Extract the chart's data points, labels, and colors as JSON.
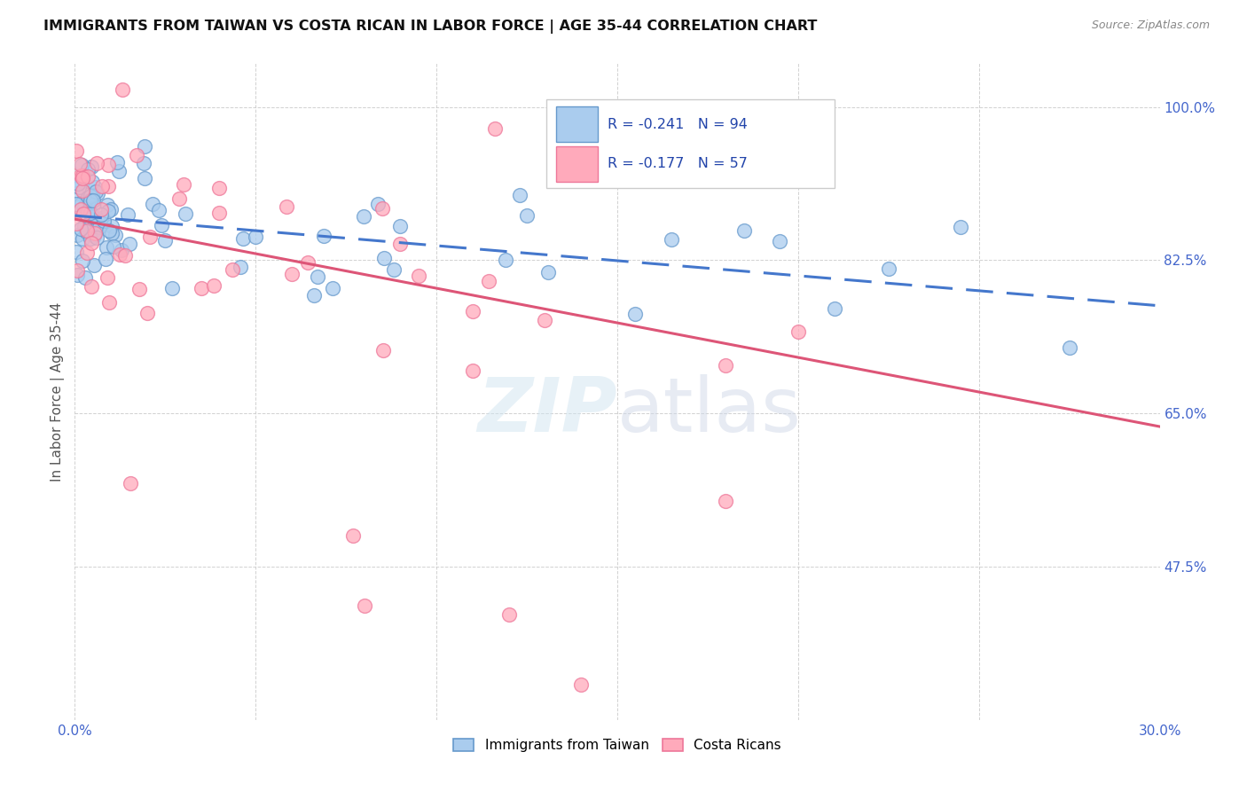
{
  "title": "IMMIGRANTS FROM TAIWAN VS COSTA RICAN IN LABOR FORCE | AGE 35-44 CORRELATION CHART",
  "source": "Source: ZipAtlas.com",
  "ylabel": "In Labor Force | Age 35-44",
  "x_min": 0.0,
  "x_max": 0.3,
  "y_min": 0.3,
  "y_max": 1.05,
  "y_ticks": [
    0.475,
    0.65,
    0.825,
    1.0
  ],
  "y_tick_labels": [
    "47.5%",
    "65.0%",
    "82.5%",
    "100.0%"
  ],
  "x_ticks": [
    0.0,
    0.05,
    0.1,
    0.15,
    0.2,
    0.25,
    0.3
  ],
  "x_tick_labels": [
    "0.0%",
    "",
    "",
    "",
    "",
    "",
    "30.0%"
  ],
  "taiwan_color": "#aaccee",
  "taiwan_edge_color": "#6699cc",
  "costa_color": "#ffaabb",
  "costa_edge_color": "#ee7799",
  "taiwan_line_color": "#4477cc",
  "costa_line_color": "#dd5577",
  "bottom_legend_taiwan": "Immigrants from Taiwan",
  "bottom_legend_costa": "Costa Ricans",
  "watermark": "ZIPatlas",
  "taiwan_line_x0": 0.0,
  "taiwan_line_y0": 0.876,
  "taiwan_line_x1": 0.3,
  "taiwan_line_y1": 0.773,
  "costa_line_x0": 0.0,
  "costa_line_y0": 0.872,
  "costa_line_x1": 0.3,
  "costa_line_y1": 0.635,
  "tick_color": "#4466cc"
}
